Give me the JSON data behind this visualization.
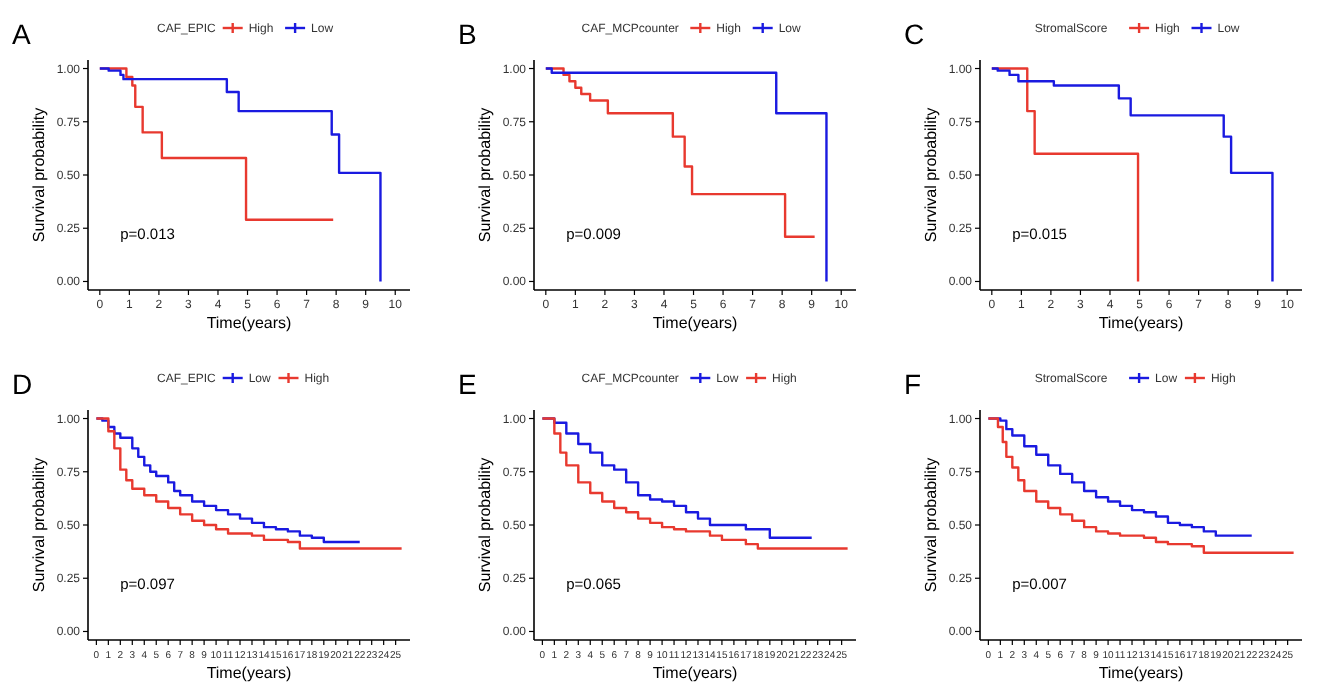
{
  "chart_data": [
    {
      "type": "step",
      "title": "A",
      "legend_title": "CAF_EPIC",
      "xlabel": "Time(years)",
      "ylabel": "Survival probability",
      "legend": "top",
      "annotations": [
        "p=0.013"
      ],
      "xlim": [
        -0.4,
        10.5
      ],
      "xticks": [
        0,
        1,
        2,
        3,
        4,
        5,
        6,
        7,
        8,
        9,
        10
      ],
      "ylim": [
        -0.04,
        1.04
      ],
      "yticks": [
        {
          "value": 0,
          "label": "0.00"
        },
        {
          "value": 0.25,
          "label": "0.25"
        },
        {
          "value": 0.5,
          "label": "0.50"
        },
        {
          "value": 0.75,
          "label": "0.75"
        },
        {
          "value": 1,
          "label": "1.00"
        }
      ],
      "series": [
        {
          "name": "High",
          "color": "#e8392f",
          "x": [
            0,
            0.9,
            1.1,
            1.2,
            1.45,
            2.1,
            4.95,
            7.9
          ],
          "values": [
            1,
            0.96,
            0.92,
            0.82,
            0.7,
            0.58,
            0.29,
            0.29
          ]
        },
        {
          "name": "Low",
          "color": "#1a1ae0",
          "x": [
            0,
            0.3,
            0.7,
            0.8,
            4.3,
            4.7,
            7.85,
            8.1,
            9.5
          ],
          "values": [
            1,
            0.99,
            0.97,
            0.95,
            0.89,
            0.8,
            0.69,
            0.51,
            0
          ]
        }
      ]
    },
    {
      "type": "step",
      "title": "B",
      "legend_title": "CAF_MCPcounter",
      "xlabel": "Time(years)",
      "ylabel": "Survival probability",
      "legend": "top",
      "annotations": [
        "p=0.009"
      ],
      "xlim": [
        -0.4,
        10.5
      ],
      "xticks": [
        0,
        1,
        2,
        3,
        4,
        5,
        6,
        7,
        8,
        9,
        10
      ],
      "ylim": [
        -0.04,
        1.04
      ],
      "yticks": [
        {
          "value": 0,
          "label": "0.00"
        },
        {
          "value": 0.25,
          "label": "0.25"
        },
        {
          "value": 0.5,
          "label": "0.50"
        },
        {
          "value": 0.75,
          "label": "0.75"
        },
        {
          "value": 1,
          "label": "1.00"
        }
      ],
      "series": [
        {
          "name": "High",
          "color": "#e8392f",
          "x": [
            0,
            0.6,
            0.8,
            1.0,
            1.2,
            1.5,
            2.1,
            4.3,
            4.7,
            4.95,
            8.1,
            9.1
          ],
          "values": [
            1,
            0.97,
            0.94,
            0.91,
            0.88,
            0.85,
            0.79,
            0.68,
            0.54,
            0.41,
            0.21,
            0.21
          ]
        },
        {
          "name": "Low",
          "color": "#1a1ae0",
          "x": [
            0,
            0.2,
            7.8,
            9.5
          ],
          "values": [
            1,
            0.98,
            0.79,
            0
          ]
        }
      ]
    },
    {
      "type": "step",
      "title": "C",
      "legend_title": "StromalScore",
      "xlabel": "Time(years)",
      "ylabel": "Survival probability",
      "legend": "top",
      "annotations": [
        "p=0.015"
      ],
      "xlim": [
        -0.4,
        10.5
      ],
      "xticks": [
        0,
        1,
        2,
        3,
        4,
        5,
        6,
        7,
        8,
        9,
        10
      ],
      "ylim": [
        -0.04,
        1.04
      ],
      "yticks": [
        {
          "value": 0,
          "label": "0.00"
        },
        {
          "value": 0.25,
          "label": "0.25"
        },
        {
          "value": 0.5,
          "label": "0.50"
        },
        {
          "value": 0.75,
          "label": "0.75"
        },
        {
          "value": 1,
          "label": "1.00"
        }
      ],
      "series": [
        {
          "name": "High",
          "color": "#e8392f",
          "x": [
            0,
            1.2,
            1.45,
            4.95
          ],
          "values": [
            1,
            0.8,
            0.6,
            0
          ]
        },
        {
          "name": "Low",
          "color": "#1a1ae0",
          "x": [
            0,
            0.2,
            0.6,
            0.9,
            2.1,
            4.3,
            4.7,
            7.85,
            8.1,
            9.5
          ],
          "values": [
            1,
            0.99,
            0.97,
            0.94,
            0.92,
            0.86,
            0.78,
            0.68,
            0.51,
            0
          ]
        }
      ]
    },
    {
      "type": "step",
      "title": "D",
      "legend_title": "CAF_EPIC",
      "xlabel": "Time(years)",
      "ylabel": "Survival probability",
      "legend": "top",
      "annotations": [
        "p=0.097"
      ],
      "xlim": [
        -0.7,
        26.2
      ],
      "xticks": [
        0,
        1,
        2,
        3,
        4,
        5,
        6,
        7,
        8,
        9,
        10,
        11,
        12,
        13,
        14,
        15,
        16,
        17,
        18,
        19,
        20,
        21,
        22,
        23,
        24,
        25
      ],
      "ylim": [
        -0.04,
        1.04
      ],
      "yticks": [
        {
          "value": 0,
          "label": "0.00"
        },
        {
          "value": 0.25,
          "label": "0.25"
        },
        {
          "value": 0.5,
          "label": "0.50"
        },
        {
          "value": 0.75,
          "label": "0.75"
        },
        {
          "value": 1,
          "label": "1.00"
        }
      ],
      "series": [
        {
          "name": "Low",
          "color": "#1a1ae0",
          "x": [
            0,
            0.5,
            1,
            1.5,
            2,
            3,
            3.5,
            4,
            4.5,
            5,
            6,
            6.5,
            7,
            8,
            9,
            10,
            11,
            12,
            13,
            14,
            15,
            16,
            17,
            18,
            19,
            22
          ],
          "values": [
            1,
            0.99,
            0.96,
            0.93,
            0.91,
            0.86,
            0.82,
            0.78,
            0.75,
            0.73,
            0.7,
            0.66,
            0.64,
            0.61,
            0.59,
            0.57,
            0.55,
            0.53,
            0.51,
            0.49,
            0.48,
            0.47,
            0.45,
            0.44,
            0.42,
            0.42
          ]
        },
        {
          "name": "High",
          "color": "#e8392f",
          "x": [
            0,
            1,
            1.5,
            2,
            2.5,
            3,
            4,
            5,
            6,
            7,
            8,
            9,
            10,
            11,
            13,
            14,
            16,
            17,
            25.5
          ],
          "values": [
            1,
            0.94,
            0.86,
            0.76,
            0.71,
            0.67,
            0.64,
            0.61,
            0.58,
            0.55,
            0.52,
            0.5,
            0.48,
            0.46,
            0.45,
            0.43,
            0.42,
            0.39,
            0.39
          ]
        }
      ]
    },
    {
      "type": "step",
      "title": "E",
      "legend_title": "CAF_MCPcounter",
      "xlabel": "Time(years)",
      "ylabel": "Survival probability",
      "legend": "top",
      "annotations": [
        "p=0.065"
      ],
      "xlim": [
        -0.7,
        26.2
      ],
      "xticks": [
        0,
        1,
        2,
        3,
        4,
        5,
        6,
        7,
        8,
        9,
        10,
        11,
        12,
        13,
        14,
        15,
        16,
        17,
        18,
        19,
        20,
        21,
        22,
        23,
        24,
        25
      ],
      "ylim": [
        -0.04,
        1.04
      ],
      "yticks": [
        {
          "value": 0,
          "label": "0.00"
        },
        {
          "value": 0.25,
          "label": "0.25"
        },
        {
          "value": 0.5,
          "label": "0.50"
        },
        {
          "value": 0.75,
          "label": "0.75"
        },
        {
          "value": 1,
          "label": "1.00"
        }
      ],
      "series": [
        {
          "name": "Low",
          "color": "#1a1ae0",
          "x": [
            0,
            1,
            2,
            3,
            4,
            5,
            6,
            7,
            8,
            9,
            10,
            11,
            12,
            13,
            14,
            17,
            19,
            22.5
          ],
          "values": [
            1,
            0.98,
            0.93,
            0.88,
            0.84,
            0.78,
            0.76,
            0.7,
            0.64,
            0.62,
            0.61,
            0.59,
            0.56,
            0.53,
            0.5,
            0.48,
            0.44,
            0.44
          ]
        },
        {
          "name": "High",
          "color": "#e8392f",
          "x": [
            0,
            1,
            1.5,
            2,
            3,
            4,
            5,
            6,
            7,
            8,
            9,
            10,
            11,
            12,
            14,
            15,
            17,
            18,
            25.5
          ],
          "values": [
            1,
            0.93,
            0.84,
            0.78,
            0.7,
            0.65,
            0.61,
            0.58,
            0.56,
            0.53,
            0.51,
            0.49,
            0.48,
            0.47,
            0.45,
            0.43,
            0.41,
            0.39,
            0.39
          ]
        }
      ]
    },
    {
      "type": "step",
      "title": "F",
      "legend_title": "StromalScore",
      "xlabel": "Time(years)",
      "ylabel": "Survival probability",
      "legend": "top",
      "annotations": [
        "p=0.007"
      ],
      "xlim": [
        -0.7,
        26.2
      ],
      "xticks": [
        0,
        1,
        2,
        3,
        4,
        5,
        6,
        7,
        8,
        9,
        10,
        11,
        12,
        13,
        14,
        15,
        16,
        17,
        18,
        19,
        20,
        21,
        22,
        23,
        24,
        25
      ],
      "ylim": [
        -0.04,
        1.04
      ],
      "yticks": [
        {
          "value": 0,
          "label": "0.00"
        },
        {
          "value": 0.25,
          "label": "0.25"
        },
        {
          "value": 0.5,
          "label": "0.50"
        },
        {
          "value": 0.75,
          "label": "0.75"
        },
        {
          "value": 1,
          "label": "1.00"
        }
      ],
      "series": [
        {
          "name": "Low",
          "color": "#1a1ae0",
          "x": [
            0,
            1,
            1.5,
            2,
            3,
            4,
            5,
            6,
            7,
            8,
            9,
            10,
            11,
            12,
            13,
            14,
            15,
            16,
            17,
            18,
            19,
            22
          ],
          "values": [
            1,
            0.99,
            0.95,
            0.92,
            0.87,
            0.83,
            0.78,
            0.74,
            0.7,
            0.66,
            0.63,
            0.61,
            0.59,
            0.57,
            0.56,
            0.54,
            0.51,
            0.5,
            0.49,
            0.47,
            0.45,
            0.45
          ]
        },
        {
          "name": "High",
          "color": "#e8392f",
          "x": [
            0,
            0.8,
            1.2,
            1.5,
            2,
            2.5,
            3,
            4,
            5,
            6,
            7,
            8,
            9,
            10,
            11,
            13,
            14,
            15,
            17,
            18,
            25.5
          ],
          "values": [
            1,
            0.96,
            0.89,
            0.82,
            0.77,
            0.71,
            0.66,
            0.61,
            0.58,
            0.55,
            0.52,
            0.49,
            0.47,
            0.46,
            0.45,
            0.44,
            0.42,
            0.41,
            0.4,
            0.37,
            0.37
          ]
        }
      ]
    }
  ]
}
